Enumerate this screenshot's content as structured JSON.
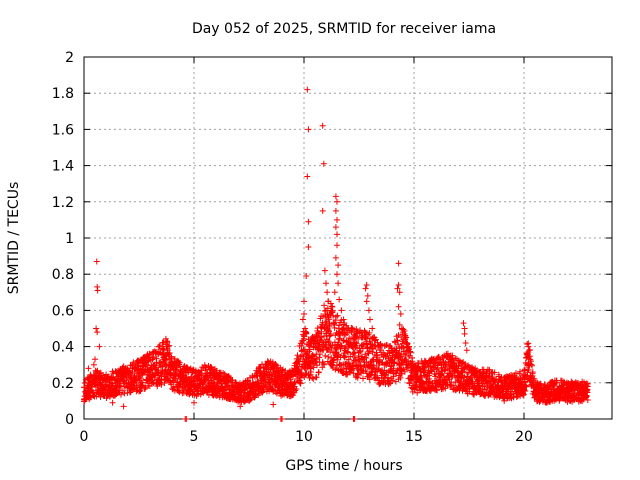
{
  "chart_data": {
    "type": "scatter",
    "title": "Day 052 of 2025, SRMTID for receiver iama",
    "xlabel": "GPS time / hours",
    "ylabel": "SRMTID / TECUs",
    "xlim": [
      0,
      24
    ],
    "ylim": [
      0,
      2
    ],
    "grid": true,
    "marker": "+",
    "color": "#ff0000",
    "x_ticks": [
      {
        "value": 0,
        "label": "0"
      },
      {
        "value": 5,
        "label": "5"
      },
      {
        "value": 10,
        "label": "10"
      },
      {
        "value": 15,
        "label": "15"
      },
      {
        "value": 20,
        "label": "20"
      }
    ],
    "y_ticks": [
      {
        "value": 0,
        "label": "0"
      },
      {
        "value": 0.2,
        "label": "0.2"
      },
      {
        "value": 0.4,
        "label": "0.4"
      },
      {
        "value": 0.6,
        "label": "0.6"
      },
      {
        "value": 0.8,
        "label": "0.8"
      },
      {
        "value": 1.0,
        "label": "1"
      },
      {
        "value": 1.2,
        "label": "1.2"
      },
      {
        "value": 1.4,
        "label": "1.4"
      },
      {
        "value": 1.6,
        "label": "1.6"
      },
      {
        "value": 1.8,
        "label": "1.8"
      },
      {
        "value": 2.0,
        "label": "2"
      }
    ],
    "baseline_profile": [
      [
        0.0,
        0.15
      ],
      [
        0.5,
        0.2
      ],
      [
        1.0,
        0.18
      ],
      [
        1.5,
        0.2
      ],
      [
        2.0,
        0.22
      ],
      [
        2.5,
        0.24
      ],
      [
        3.0,
        0.27
      ],
      [
        3.5,
        0.3
      ],
      [
        3.8,
        0.33
      ],
      [
        4.0,
        0.25
      ],
      [
        4.5,
        0.22
      ],
      [
        5.0,
        0.2
      ],
      [
        5.5,
        0.22
      ],
      [
        6.0,
        0.2
      ],
      [
        6.5,
        0.18
      ],
      [
        7.0,
        0.14
      ],
      [
        7.5,
        0.16
      ],
      [
        8.0,
        0.22
      ],
      [
        8.5,
        0.24
      ],
      [
        9.0,
        0.2
      ],
      [
        9.5,
        0.2
      ],
      [
        10.0,
        0.36
      ],
      [
        10.5,
        0.33
      ],
      [
        11.0,
        0.5
      ],
      [
        11.5,
        0.42
      ],
      [
        12.0,
        0.38
      ],
      [
        12.5,
        0.36
      ],
      [
        13.0,
        0.35
      ],
      [
        13.5,
        0.3
      ],
      [
        14.0,
        0.3
      ],
      [
        14.5,
        0.38
      ],
      [
        15.0,
        0.22
      ],
      [
        15.5,
        0.24
      ],
      [
        16.0,
        0.25
      ],
      [
        16.5,
        0.27
      ],
      [
        17.0,
        0.24
      ],
      [
        17.5,
        0.22
      ],
      [
        18.0,
        0.2
      ],
      [
        18.5,
        0.2
      ],
      [
        19.0,
        0.18
      ],
      [
        19.5,
        0.18
      ],
      [
        20.0,
        0.2
      ],
      [
        20.2,
        0.34
      ],
      [
        20.5,
        0.15
      ],
      [
        21.0,
        0.14
      ],
      [
        21.5,
        0.16
      ],
      [
        22.0,
        0.15
      ],
      [
        22.5,
        0.15
      ],
      [
        22.9,
        0.16
      ]
    ],
    "series": [
      {
        "name": "SRMTID",
        "points": [
          [
            0.58,
            0.87
          ],
          [
            0.6,
            0.73
          ],
          [
            0.62,
            0.71
          ],
          [
            0.55,
            0.5
          ],
          [
            0.6,
            0.48
          ],
          [
            0.5,
            0.33
          ],
          [
            0.45,
            0.3
          ],
          [
            0.7,
            0.4
          ],
          [
            0.2,
            0.28
          ],
          [
            0.1,
            0.14
          ],
          [
            3.75,
            0.4
          ],
          [
            3.8,
            0.38
          ],
          [
            3.6,
            0.36
          ],
          [
            10.15,
            1.82
          ],
          [
            10.2,
            1.6
          ],
          [
            10.15,
            1.34
          ],
          [
            10.2,
            1.09
          ],
          [
            10.2,
            0.95
          ],
          [
            10.1,
            0.79
          ],
          [
            10.0,
            0.65
          ],
          [
            10.0,
            0.58
          ],
          [
            9.95,
            0.55
          ],
          [
            10.05,
            0.5
          ],
          [
            10.1,
            0.47
          ],
          [
            10.2,
            0.44
          ],
          [
            10.3,
            0.42
          ],
          [
            10.85,
            1.62
          ],
          [
            10.9,
            1.41
          ],
          [
            10.85,
            1.15
          ],
          [
            10.95,
            0.82
          ],
          [
            11.0,
            0.75
          ],
          [
            11.05,
            0.7
          ],
          [
            11.1,
            0.65
          ],
          [
            11.0,
            0.6
          ],
          [
            11.1,
            0.56
          ],
          [
            11.2,
            0.58
          ],
          [
            11.15,
            0.52
          ],
          [
            11.45,
            1.23
          ],
          [
            11.5,
            1.2
          ],
          [
            11.45,
            1.15
          ],
          [
            11.5,
            1.1
          ],
          [
            11.45,
            1.06
          ],
          [
            11.5,
            1.02
          ],
          [
            11.5,
            0.96
          ],
          [
            11.45,
            0.89
          ],
          [
            11.55,
            0.85
          ],
          [
            11.5,
            0.8
          ],
          [
            11.55,
            0.75
          ],
          [
            11.4,
            0.7
          ],
          [
            11.6,
            0.66
          ],
          [
            11.7,
            0.6
          ],
          [
            11.8,
            0.55
          ],
          [
            12.2,
            0.5
          ],
          [
            12.3,
            0.46
          ],
          [
            12.85,
            0.74
          ],
          [
            12.8,
            0.72
          ],
          [
            12.9,
            0.68
          ],
          [
            12.85,
            0.65
          ],
          [
            12.95,
            0.6
          ],
          [
            13.0,
            0.55
          ],
          [
            13.1,
            0.5
          ],
          [
            13.2,
            0.45
          ],
          [
            14.3,
            0.86
          ],
          [
            14.3,
            0.74
          ],
          [
            14.25,
            0.72
          ],
          [
            14.35,
            0.7
          ],
          [
            14.3,
            0.62
          ],
          [
            14.4,
            0.58
          ],
          [
            14.35,
            0.52
          ],
          [
            14.45,
            0.5
          ],
          [
            14.5,
            0.48
          ],
          [
            14.6,
            0.44
          ],
          [
            14.65,
            0.42
          ],
          [
            14.7,
            0.4
          ],
          [
            17.25,
            0.53
          ],
          [
            17.3,
            0.5
          ],
          [
            17.3,
            0.47
          ],
          [
            17.35,
            0.42
          ],
          [
            17.4,
            0.38
          ],
          [
            20.2,
            0.4
          ],
          [
            20.25,
            0.38
          ],
          [
            20.15,
            0.36
          ],
          [
            4.6,
            0.0
          ],
          [
            4.65,
            0.0
          ],
          [
            8.95,
            0.0
          ],
          [
            9.0,
            0.0
          ],
          [
            12.25,
            0.0
          ],
          [
            12.3,
            0.0
          ],
          [
            5.0,
            0.09
          ],
          [
            7.1,
            0.07
          ],
          [
            7.5,
            0.1
          ],
          [
            8.6,
            0.08
          ],
          [
            19.1,
            0.1
          ],
          [
            22.5,
            0.11
          ],
          [
            1.3,
            0.09
          ],
          [
            1.8,
            0.07
          ]
        ]
      }
    ]
  }
}
